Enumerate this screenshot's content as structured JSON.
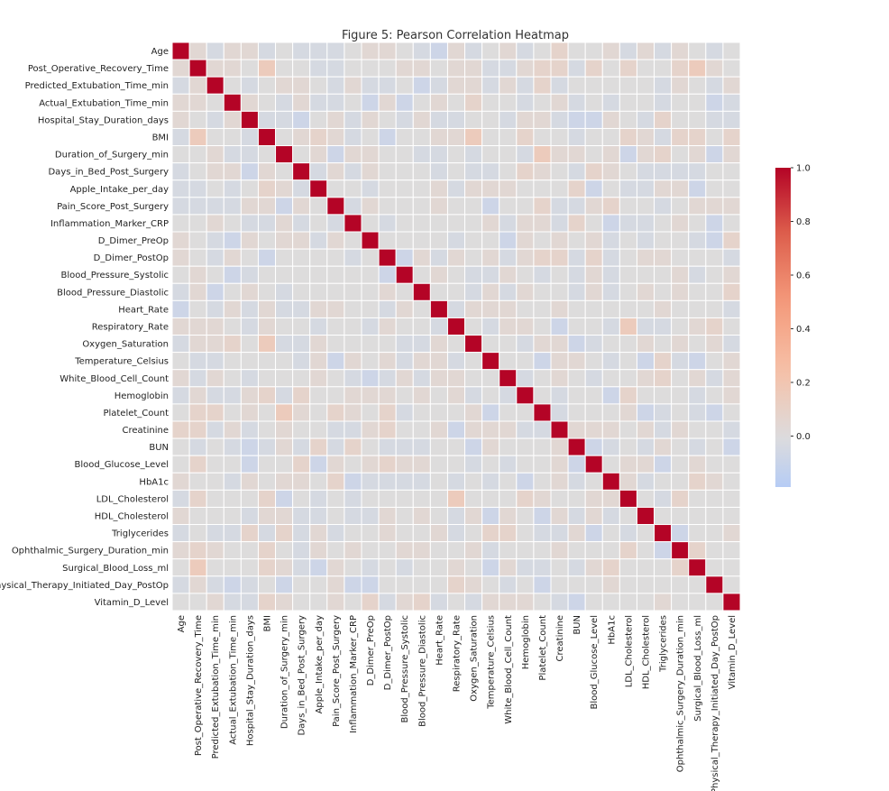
{
  "chart_data": {
    "type": "heatmap",
    "title": "Figure 5: Pearson Correlation Heatmap",
    "colormap": "coolwarm",
    "center": 0,
    "vmin": -0.19,
    "vmax": 1.0,
    "colorbar_ticks": [
      "1.0",
      "0.8",
      "0.6",
      "0.4",
      "0.2",
      "0.0"
    ],
    "grid_line_color": "#ffffff",
    "variables": [
      "Age",
      "Post_Operative_Recovery_Time",
      "Predicted_Extubation_Time_min",
      "Actual_Extubation_Time_min",
      "Hospital_Stay_Duration_days",
      "BMI",
      "Duration_of_Surgery_min",
      "Days_in_Bed_Post_Surgery",
      "Apple_Intake_per_day",
      "Pain_Score_Post_Surgery",
      "Inflammation_Marker_CRP",
      "D_Dimer_PreOp",
      "D_Dimer_PostOp",
      "Blood_Pressure_Systolic",
      "Blood_Pressure_Diastolic",
      "Heart_Rate",
      "Respiratory_Rate",
      "Oxygen_Saturation",
      "Temperature_Celsius",
      "White_Blood_Cell_Count",
      "Hemoglobin",
      "Platelet_Count",
      "Creatinine",
      "BUN",
      "Blood_Glucose_Level",
      "HbA1c",
      "LDL_Cholesterol",
      "HDL_Cholesterol",
      "Triglycerides",
      "Ophthalmic_Surgery_Duration_min",
      "Surgical_Blood_Loss_ml",
      "Physical_Therapy_Initiated_Day_PostOp",
      "Vitamin_D_Level"
    ],
    "diagonal": 1.0,
    "lower_triangle": [
      [],
      [
        0.04
      ],
      [
        -0.04,
        0.04
      ],
      [
        0.04,
        0.04,
        0
      ],
      [
        0.04,
        0,
        -0.04,
        0.04
      ],
      [
        -0.04,
        0.15,
        0,
        0,
        -0.04
      ],
      [
        0,
        0,
        0.04,
        -0.04,
        -0.04,
        0
      ],
      [
        -0.04,
        0,
        0.04,
        0.04,
        -0.08,
        0.04,
        0
      ],
      [
        -0.04,
        -0.04,
        0,
        -0.04,
        0,
        0.08,
        0.04,
        -0.04
      ],
      [
        -0.04,
        -0.04,
        -0.04,
        -0.04,
        0.04,
        0.04,
        -0.08,
        0.04,
        0
      ],
      [
        0,
        0,
        0.04,
        0,
        -0.04,
        -0.04,
        0.04,
        -0.04,
        0,
        -0.04
      ],
      [
        0.04,
        0,
        -0.04,
        -0.08,
        0.04,
        0,
        0.04,
        0.04,
        -0.04,
        0.04,
        0
      ],
      [
        0.04,
        0,
        -0.04,
        0.04,
        0,
        -0.08,
        0,
        0,
        0,
        0,
        -0.04,
        0
      ],
      [
        0,
        0.04,
        0,
        -0.08,
        -0.04,
        0,
        0,
        0,
        0,
        0,
        0,
        0,
        -0.08
      ],
      [
        -0.04,
        0.04,
        -0.08,
        0,
        0.04,
        0,
        -0.04,
        0,
        0,
        0,
        0,
        0,
        0.04,
        0
      ],
      [
        -0.08,
        0,
        -0.04,
        0.04,
        -0.04,
        0.04,
        -0.04,
        -0.04,
        0.04,
        0.04,
        0,
        0,
        -0.04,
        0.04,
        0
      ],
      [
        0.04,
        0.04,
        0.04,
        0,
        -0.04,
        0.04,
        0,
        0,
        -0.04,
        0,
        0,
        -0.04,
        0.04,
        0,
        0,
        -0.04
      ],
      [
        -0.04,
        0.04,
        0.04,
        0.08,
        0,
        0.15,
        -0.04,
        -0.04,
        0.04,
        0,
        0,
        0,
        0,
        -0.04,
        -0.04,
        0.04,
        0
      ],
      [
        0,
        -0.04,
        -0.04,
        0,
        0,
        0,
        0,
        -0.04,
        0.04,
        -0.08,
        0.04,
        0,
        0.04,
        -0.04,
        0.04,
        0.04,
        -0.04,
        0
      ],
      [
        0.04,
        -0.04,
        0.04,
        0,
        -0.04,
        0,
        0,
        0,
        0.04,
        0,
        -0.04,
        -0.08,
        -0.04,
        0.04,
        -0.04,
        0.04,
        0.04,
        0,
        0
      ],
      [
        -0.04,
        0.04,
        -0.04,
        -0.04,
        0.04,
        0.08,
        -0.04,
        0.08,
        0,
        0,
        0.04,
        0.04,
        0.04,
        0,
        0.04,
        0,
        0.04,
        -0.04,
        0,
        -0.04
      ],
      [
        0,
        0.08,
        0.08,
        0,
        0.04,
        0,
        0.15,
        0.04,
        0,
        0.08,
        0.04,
        0,
        0.08,
        -0.04,
        0,
        0,
        0,
        0.04,
        -0.08,
        0,
        0
      ],
      [
        0.08,
        0.08,
        -0.04,
        0.04,
        -0.04,
        0,
        0.04,
        0,
        0,
        -0.04,
        -0.04,
        0.04,
        0.08,
        0,
        0,
        0.04,
        -0.08,
        0.04,
        0.04,
        0.04,
        -0.04,
        -0.04
      ],
      [
        0,
        -0.04,
        0,
        -0.04,
        -0.08,
        -0.04,
        0.04,
        -0.04,
        0.08,
        -0.04,
        0.08,
        0,
        -0.04,
        -0.04,
        -0.04,
        0,
        0,
        -0.08,
        0.04,
        0,
        0,
        0,
        0.04
      ],
      [
        0,
        0.08,
        0,
        0,
        -0.08,
        0,
        0,
        0.08,
        -0.08,
        0.04,
        0,
        0.04,
        0.08,
        0.04,
        0.04,
        0,
        0,
        -0.04,
        0,
        -0.04,
        0,
        0,
        0.04,
        -0.08
      ],
      [
        0.04,
        0,
        0,
        -0.04,
        0.04,
        0,
        0.04,
        0.04,
        0,
        0.08,
        -0.08,
        -0.04,
        -0.04,
        -0.04,
        -0.04,
        0,
        -0.04,
        0,
        -0.04,
        0,
        -0.08,
        0,
        0.04,
        -0.04,
        0
      ],
      [
        -0.04,
        0.08,
        0,
        0,
        0,
        0.08,
        -0.08,
        0,
        -0.04,
        0,
        -0.04,
        0,
        0,
        0,
        0,
        0,
        0.15,
        0,
        0,
        0,
        0.08,
        0.04,
        0,
        0,
        0.04,
        0.04
      ],
      [
        0.04,
        0,
        0,
        0,
        -0.04,
        0.04,
        0.04,
        -0.04,
        -0.04,
        0,
        -0.04,
        -0.04,
        0.04,
        0,
        0.04,
        0,
        -0.04,
        0.04,
        -0.08,
        0.04,
        0,
        -0.08,
        0.04,
        -0.04,
        0.04,
        -0.04,
        0
      ],
      [
        -0.04,
        0,
        -0.04,
        -0.04,
        0.08,
        -0.04,
        0.08,
        -0.04,
        0.04,
        -0.04,
        0,
        0,
        0.04,
        0,
        0,
        0.04,
        -0.04,
        0,
        0.08,
        0.08,
        0,
        -0.04,
        -0.04,
        0.04,
        -0.08,
        0,
        -0.04,
        0
      ],
      [
        0.04,
        0.08,
        0.04,
        0,
        0,
        0.08,
        0,
        -0.04,
        0.04,
        0,
        0.04,
        0,
        0,
        0.04,
        0.04,
        0,
        0,
        0.04,
        -0.04,
        0,
        0,
        0,
        0.04,
        0,
        0,
        0,
        0.08,
        0,
        -0.08
      ],
      [
        0,
        0.15,
        0,
        0,
        0,
        0.08,
        0.04,
        -0.04,
        -0.08,
        0.04,
        0,
        -0.04,
        0,
        -0.04,
        0,
        0,
        0.04,
        0,
        -0.08,
        0.04,
        -0.04,
        -0.04,
        0,
        -0.04,
        0.04,
        0.08,
        0,
        0,
        0,
        0.08
      ],
      [
        -0.04,
        0.04,
        -0.04,
        -0.08,
        -0.04,
        0,
        -0.08,
        0,
        0,
        0.04,
        -0.08,
        -0.08,
        0,
        0,
        0,
        0,
        0.08,
        0.04,
        0,
        -0.04,
        0,
        -0.08,
        0,
        0,
        0,
        0.04,
        0,
        0,
        0,
        0,
        0
      ],
      [
        0,
        0,
        0.04,
        -0.04,
        -0.04,
        0.08,
        0.04,
        0,
        0,
        0.04,
        0,
        0.08,
        -0.04,
        0.04,
        0.08,
        -0.04,
        0,
        -0.04,
        0.04,
        0.04,
        0.04,
        0,
        -0.04,
        -0.08,
        0,
        0,
        0,
        0,
        0.04,
        0,
        0,
        0
      ]
    ]
  }
}
